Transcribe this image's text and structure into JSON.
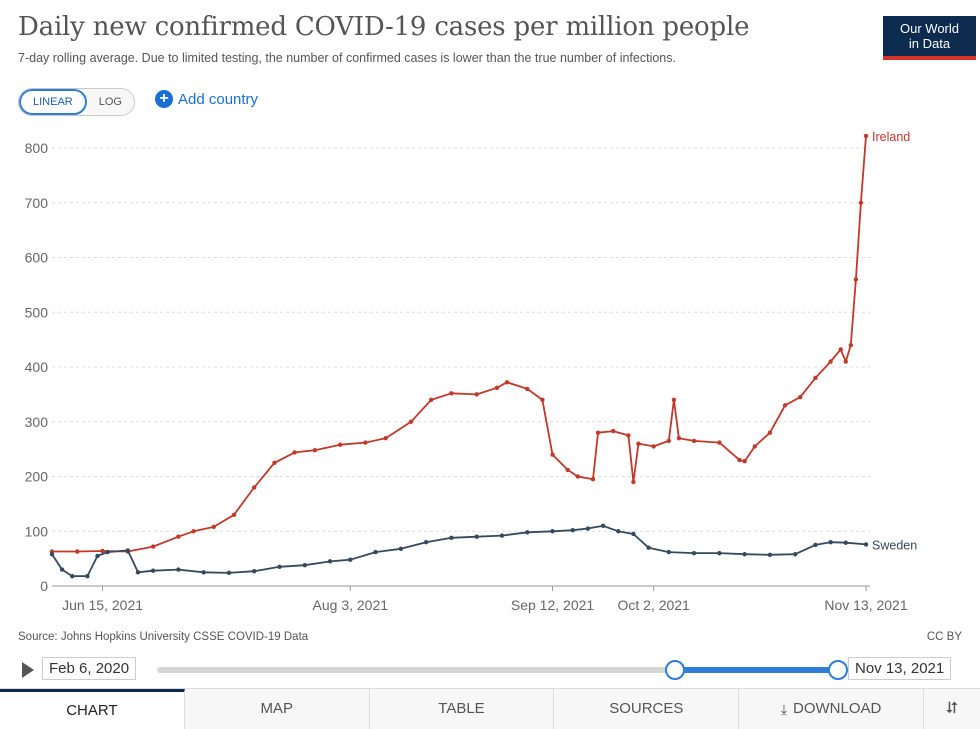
{
  "header": {
    "title": "Daily new confirmed COVID-19 cases per million people",
    "subtitle": "7-day rolling average. Due to limited testing, the number of confirmed cases is lower than the true number of infections.",
    "logo_line1": "Our World",
    "logo_line2": "in Data"
  },
  "controls": {
    "scale_options": [
      "LINEAR",
      "LOG"
    ],
    "scale_selected": "LINEAR",
    "add_country_label": "Add country",
    "add_icon": "plus-circle-icon"
  },
  "colors": {
    "Ireland": "#c0392b",
    "Sweden": "#34495e",
    "accent": "#2e7dd7",
    "logo_bg": "#0d2a4f",
    "logo_bar": "#d7322a"
  },
  "chart_data": {
    "type": "line",
    "title": "Daily new confirmed COVID-19 cases per million people",
    "xlabel": "",
    "ylabel": "",
    "xlim": [
      "2021-06-05",
      "2021-11-13"
    ],
    "ylim": [
      0,
      800
    ],
    "yticks": [
      0,
      100,
      200,
      300,
      400,
      500,
      600,
      700,
      800
    ],
    "xticks": [
      "Jun 15, 2021",
      "Aug 3, 2021",
      "Sep 12, 2021",
      "Oct 2, 2021",
      "Nov 13, 2021"
    ],
    "xtick_dates": [
      "2021-06-15",
      "2021-08-03",
      "2021-09-12",
      "2021-10-02",
      "2021-11-13"
    ],
    "grid": "horizontal dashed",
    "legend": "inline labels at line ends (right)",
    "series": [
      {
        "name": "Ireland",
        "points": [
          [
            "2021-06-05",
            63
          ],
          [
            "2021-06-10",
            63
          ],
          [
            "2021-06-15",
            64
          ],
          [
            "2021-06-20",
            63
          ],
          [
            "2021-06-25",
            72
          ],
          [
            "2021-06-30",
            90
          ],
          [
            "2021-07-03",
            100
          ],
          [
            "2021-07-07",
            108
          ],
          [
            "2021-07-11",
            130
          ],
          [
            "2021-07-15",
            180
          ],
          [
            "2021-07-19",
            225
          ],
          [
            "2021-07-23",
            244
          ],
          [
            "2021-07-27",
            248
          ],
          [
            "2021-08-01",
            258
          ],
          [
            "2021-08-06",
            262
          ],
          [
            "2021-08-10",
            270
          ],
          [
            "2021-08-15",
            300
          ],
          [
            "2021-08-19",
            340
          ],
          [
            "2021-08-23",
            352
          ],
          [
            "2021-08-28",
            350
          ],
          [
            "2021-09-01",
            362
          ],
          [
            "2021-09-03",
            372
          ],
          [
            "2021-09-07",
            360
          ],
          [
            "2021-09-10",
            340
          ],
          [
            "2021-09-12",
            240
          ],
          [
            "2021-09-15",
            212
          ],
          [
            "2021-09-17",
            200
          ],
          [
            "2021-09-20",
            195
          ],
          [
            "2021-09-21",
            280
          ],
          [
            "2021-09-24",
            283
          ],
          [
            "2021-09-27",
            275
          ],
          [
            "2021-09-28",
            190
          ],
          [
            "2021-09-29",
            260
          ],
          [
            "2021-10-02",
            255
          ],
          [
            "2021-10-05",
            265
          ],
          [
            "2021-10-06",
            340
          ],
          [
            "2021-10-07",
            270
          ],
          [
            "2021-10-10",
            265
          ],
          [
            "2021-10-15",
            262
          ],
          [
            "2021-10-19",
            230
          ],
          [
            "2021-10-20",
            228
          ],
          [
            "2021-10-22",
            255
          ],
          [
            "2021-10-25",
            280
          ],
          [
            "2021-10-28",
            330
          ],
          [
            "2021-10-31",
            345
          ],
          [
            "2021-11-03",
            380
          ],
          [
            "2021-11-06",
            410
          ],
          [
            "2021-11-08",
            432
          ],
          [
            "2021-11-09",
            410
          ],
          [
            "2021-11-10",
            440
          ],
          [
            "2021-11-11",
            560
          ],
          [
            "2021-11-12",
            700
          ],
          [
            "2021-11-13",
            822
          ]
        ]
      },
      {
        "name": "Sweden",
        "points": [
          [
            "2021-06-05",
            58
          ],
          [
            "2021-06-07",
            30
          ],
          [
            "2021-06-09",
            18
          ],
          [
            "2021-06-12",
            18
          ],
          [
            "2021-06-14",
            55
          ],
          [
            "2021-06-16",
            62
          ],
          [
            "2021-06-20",
            65
          ],
          [
            "2021-06-22",
            25
          ],
          [
            "2021-06-25",
            28
          ],
          [
            "2021-06-30",
            30
          ],
          [
            "2021-07-05",
            25
          ],
          [
            "2021-07-10",
            24
          ],
          [
            "2021-07-15",
            27
          ],
          [
            "2021-07-20",
            35
          ],
          [
            "2021-07-25",
            38
          ],
          [
            "2021-07-30",
            45
          ],
          [
            "2021-08-03",
            48
          ],
          [
            "2021-08-08",
            62
          ],
          [
            "2021-08-13",
            68
          ],
          [
            "2021-08-18",
            80
          ],
          [
            "2021-08-23",
            88
          ],
          [
            "2021-08-28",
            90
          ],
          [
            "2021-09-02",
            92
          ],
          [
            "2021-09-07",
            98
          ],
          [
            "2021-09-12",
            100
          ],
          [
            "2021-09-16",
            102
          ],
          [
            "2021-09-19",
            105
          ],
          [
            "2021-09-22",
            110
          ],
          [
            "2021-09-25",
            100
          ],
          [
            "2021-09-28",
            95
          ],
          [
            "2021-10-01",
            70
          ],
          [
            "2021-10-05",
            62
          ],
          [
            "2021-10-10",
            60
          ],
          [
            "2021-10-15",
            60
          ],
          [
            "2021-10-20",
            58
          ],
          [
            "2021-10-25",
            57
          ],
          [
            "2021-10-30",
            58
          ],
          [
            "2021-11-03",
            75
          ],
          [
            "2021-11-06",
            80
          ],
          [
            "2021-11-09",
            79
          ],
          [
            "2021-11-13",
            76
          ]
        ]
      }
    ]
  },
  "footer": {
    "source": "Source: Johns Hopkins University CSSE COVID-19 Data",
    "license": "CC BY"
  },
  "timeline": {
    "start_label": "Feb 6, 2020",
    "end_label": "Nov 13, 2021",
    "range_start_fraction": 0.76,
    "range_end_fraction": 1.0,
    "play_icon": "play-icon"
  },
  "tabs": {
    "items": [
      {
        "label": "CHART",
        "active": true
      },
      {
        "label": "MAP",
        "active": false
      },
      {
        "label": "TABLE",
        "active": false
      },
      {
        "label": "SOURCES",
        "active": false
      },
      {
        "label": "DOWNLOAD",
        "active": false
      }
    ],
    "download_icon": "download-icon",
    "share_icon": "share-icon"
  }
}
